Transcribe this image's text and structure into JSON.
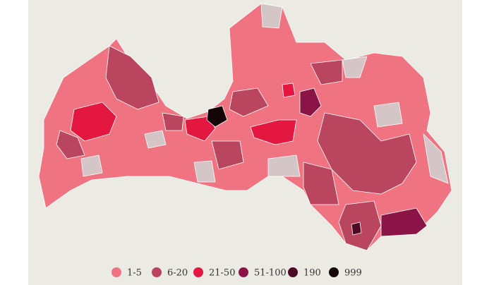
{
  "legend": {
    "items": [
      {
        "label": "1-5",
        "color": "#ef7381"
      },
      {
        "label": "6-20",
        "color": "#b9455f"
      },
      {
        "label": "21-50",
        "color": "#e3173f"
      },
      {
        "label": "51-100",
        "color": "#8b1446"
      },
      {
        "label": "190",
        "color": "#4d0a24"
      },
      {
        "label": "999",
        "color": "#140507"
      }
    ]
  }
}
